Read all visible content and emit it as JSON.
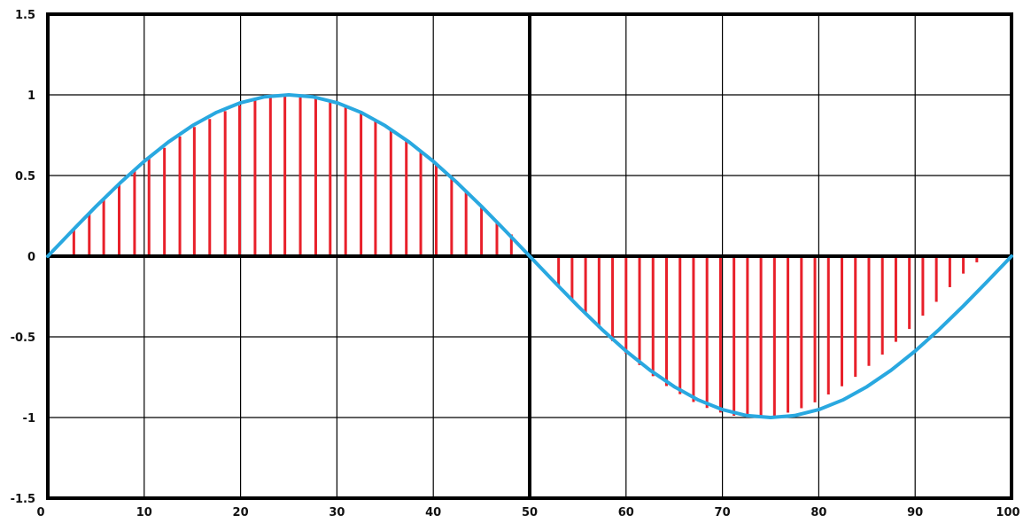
{
  "chart_data": {
    "type": "line",
    "title": "",
    "xlabel": "",
    "ylabel": "",
    "xlim": [
      0,
      100
    ],
    "ylim": [
      -1.5,
      1.5
    ],
    "grid": true,
    "x_ticks": [
      0,
      10,
      20,
      30,
      40,
      50,
      60,
      70,
      80,
      90,
      100
    ],
    "x_tick_labels": [
      "0",
      "10",
      "20",
      "30",
      "40",
      "50",
      "60",
      "70",
      "80",
      "90",
      "100"
    ],
    "y_ticks": [
      1.5,
      1,
      0.5,
      0,
      -0.5,
      -1,
      -1.5
    ],
    "y_tick_labels": [
      "1.5",
      "1",
      "0.5",
      "0",
      "-0.5",
      "-1",
      "-1.5"
    ],
    "series": [
      {
        "kind": "curve",
        "color": "#29a8e0",
        "x": [
          0,
          2.5,
          5,
          7.5,
          10,
          12.5,
          15,
          17.5,
          20,
          22.5,
          25,
          27.5,
          30,
          32.5,
          35,
          37.5,
          40,
          42.5,
          45,
          47.5,
          50,
          52.5,
          55,
          57.5,
          60,
          62.5,
          65,
          67.5,
          70,
          72.5,
          75,
          77.5,
          80,
          82.5,
          85,
          87.5,
          90,
          92.5,
          95,
          97.5,
          100
        ],
        "values": [
          0,
          0.156,
          0.309,
          0.454,
          0.588,
          0.707,
          0.809,
          0.891,
          0.951,
          0.988,
          1,
          0.988,
          0.951,
          0.891,
          0.809,
          0.707,
          0.588,
          0.454,
          0.309,
          0.156,
          0,
          -0.156,
          -0.309,
          -0.454,
          -0.588,
          -0.707,
          -0.809,
          -0.891,
          -0.951,
          -0.988,
          -1,
          -0.988,
          -0.951,
          -0.891,
          -0.809,
          -0.707,
          -0.588,
          -0.454,
          -0.309,
          -0.156,
          0
        ]
      },
      {
        "kind": "sample-lines",
        "color": "#e8202a",
        "x": [
          2.7,
          4.3,
          5.8,
          7.4,
          9,
          10.5,
          12.1,
          13.7,
          15.2,
          16.8,
          18.4,
          19.9,
          21.5,
          23.1,
          24.6,
          26.2,
          27.8,
          29.3,
          30.9,
          32.5,
          34,
          35.6,
          37.2,
          38.7,
          40.3,
          41.9,
          43.4,
          45,
          46.6,
          48.1,
          53,
          54.4,
          55.8,
          57.2,
          58.6,
          60,
          61.4,
          62.8,
          64.2,
          65.6,
          67,
          68.4,
          69.8,
          71.2,
          72.6,
          74,
          75.4,
          76.8,
          78.2,
          79.6,
          81,
          82.4,
          83.8,
          85.2,
          86.6,
          88,
          89.4,
          90.8,
          92.2,
          93.6,
          95,
          96.4,
          97.8
        ],
        "values": [
          0.169,
          0.264,
          0.352,
          0.447,
          0.536,
          0.604,
          0.672,
          0.742,
          0.801,
          0.85,
          0.899,
          0.935,
          0.966,
          0.988,
          0.999,
          0.999,
          0.987,
          0.962,
          0.931,
          0.892,
          0.841,
          0.785,
          0.72,
          0.644,
          0.568,
          0.496,
          0.407,
          0.312,
          0.217,
          0.135,
          -0.189,
          -0.276,
          -0.362,
          -0.446,
          -0.527,
          -0.605,
          -0.675,
          -0.744,
          -0.805,
          -0.855,
          -0.904,
          -0.941,
          -0.969,
          -0.989,
          -0.999,
          -0.999,
          -0.99,
          -0.97,
          -0.942,
          -0.906,
          -0.857,
          -0.806,
          -0.748,
          -0.68,
          -0.61,
          -0.531,
          -0.451,
          -0.369,
          -0.283,
          -0.192,
          -0.108,
          -0.038,
          0
        ]
      }
    ]
  }
}
